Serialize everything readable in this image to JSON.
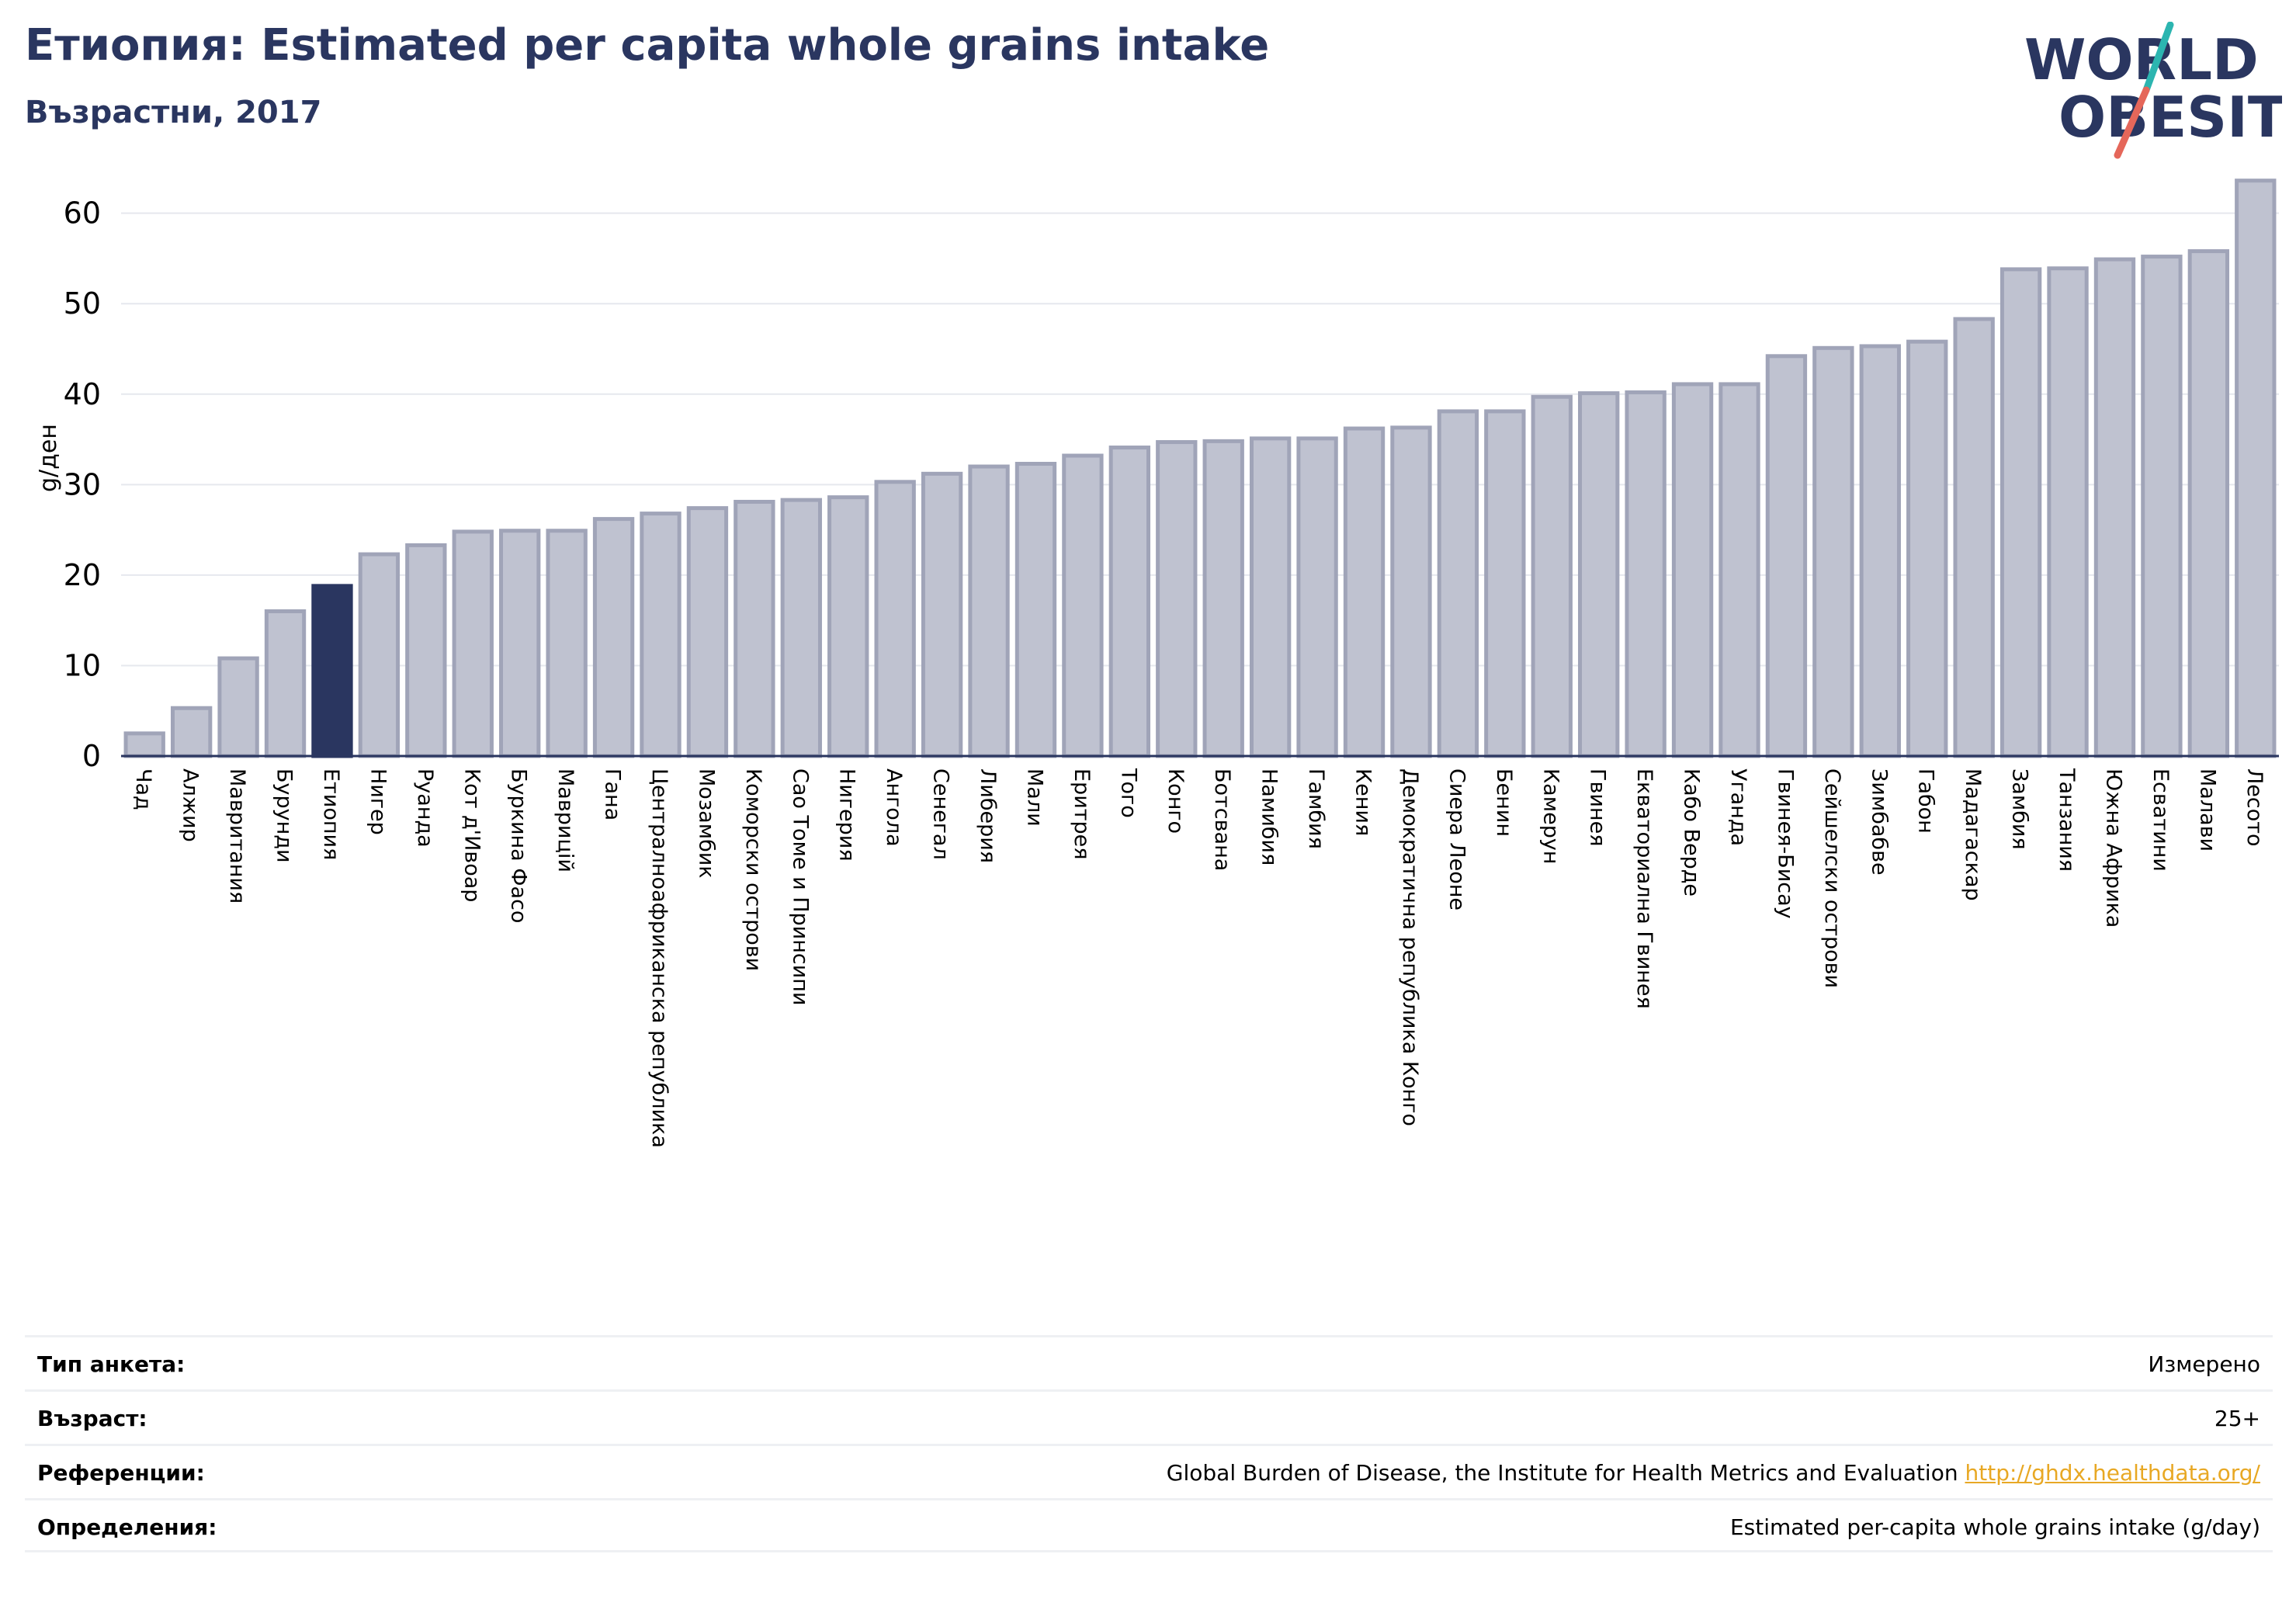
{
  "header": {
    "title": "Етиопия: Estimated per capita whole grains intake",
    "subtitle": "Възрастни, 2017"
  },
  "logo": {
    "line1": "WORLD",
    "line2": "OBESITY",
    "color_text": "#2a3660",
    "color_slash_top": "#2cb5b0",
    "color_slash_bottom": "#e5675a"
  },
  "colors": {
    "bar": "#bfc2d0",
    "bar_border": "#a0a4b8",
    "highlight": "#2a3660",
    "grid": "#e6e8ee",
    "axis": "#2a3660"
  },
  "chart_data": {
    "type": "bar",
    "ylabel": "g/ден",
    "ylim": [
      0,
      64
    ],
    "yticks": [
      0,
      10,
      20,
      30,
      40,
      50,
      60
    ],
    "highlight": "Етиопия",
    "categories": [
      "Чад",
      "Алжир",
      "Мавритания",
      "Бурунди",
      "Етиопия",
      "Нигер",
      "Руанда",
      "Кот д'Ивоар",
      "Буркина Фасо",
      "Маврицій",
      "Гана",
      "Централноафриканска република",
      "Мозамбик",
      "Коморски острови",
      "Сао Томе и Принсипи",
      "Нигерия",
      "Ангола",
      "Сенегал",
      "Либерия",
      "Мали",
      "Еритрея",
      "Того",
      "Конго",
      "Ботсвана",
      "Намибия",
      "Гамбия",
      "Кения",
      "Демократична република Конго",
      "Сиера Леоне",
      "Бенин",
      "Камерун",
      "Гвинея",
      "Екваториална Гвинея",
      "Кабо Верде",
      "Уганда",
      "Гвинея-Бисау",
      "Сейшелски острови",
      "Зимбабве",
      "Габон",
      "Мадагаскар",
      "Замбия",
      "Танзания",
      "Южна Африка",
      "Есватини",
      "Малави",
      "Лесото"
    ],
    "values": [
      2.5,
      5.3,
      10.8,
      16.0,
      18.8,
      22.3,
      23.3,
      24.8,
      24.9,
      24.9,
      26.2,
      26.8,
      27.4,
      28.1,
      28.3,
      28.6,
      30.3,
      31.2,
      32.0,
      32.3,
      33.2,
      34.1,
      34.7,
      34.8,
      35.1,
      35.1,
      36.2,
      36.3,
      38.1,
      38.1,
      39.7,
      40.1,
      40.2,
      41.1,
      41.1,
      44.2,
      45.1,
      45.3,
      45.8,
      48.3,
      53.8,
      53.9,
      54.9,
      55.2,
      55.8,
      63.6
    ]
  },
  "info": [
    {
      "label": "Тип анкета:",
      "value": "Измерено"
    },
    {
      "label": "Възраст:",
      "value": "25+"
    },
    {
      "label": "Референции:",
      "value": "Global Burden of Disease, the Institute for Health Metrics and Evaluation",
      "link": "http://ghdx.healthdata.org/"
    },
    {
      "label": "Определения:",
      "value": "Estimated per-capita whole grains intake (g/day)"
    }
  ]
}
